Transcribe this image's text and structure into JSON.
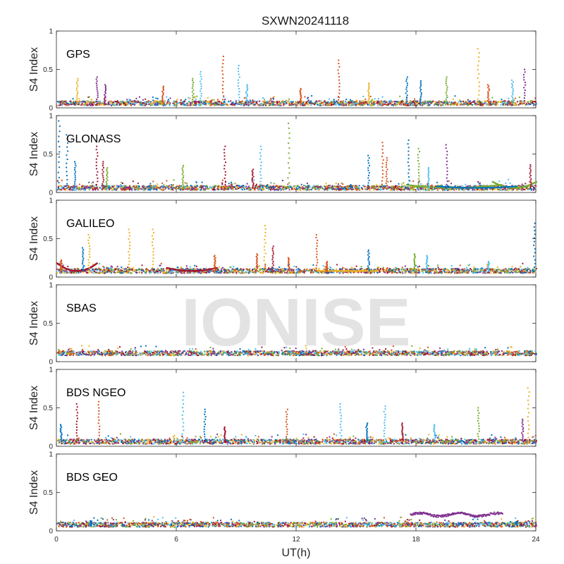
{
  "chart_data": {
    "type": "scatter",
    "title": "SXWN20241118",
    "xlabel": "UT(h)",
    "ylabel": "S4 Index",
    "xlim": [
      0,
      24
    ],
    "ylim": [
      0,
      1
    ],
    "xticks": [
      0,
      6,
      12,
      18,
      24
    ],
    "yticks": [
      0,
      0.5,
      1
    ],
    "xtick_labels": [
      "0",
      "6",
      "12",
      "18",
      "24"
    ],
    "ytick_labels": [
      "0",
      "0.5",
      "1"
    ],
    "watermark": "IONISE",
    "colors": [
      "#0072BD",
      "#D95319",
      "#EDB120",
      "#7E2F8E",
      "#77AC30",
      "#4DBEEE",
      "#A2142F"
    ],
    "panels": [
      {
        "label": "GPS",
        "baseline": 0.06,
        "spikes": [
          [
            1.0,
            0.38,
            2
          ],
          [
            2.0,
            0.4,
            3
          ],
          [
            2.4,
            0.3,
            3
          ],
          [
            5.3,
            0.28,
            1
          ],
          [
            6.8,
            0.38,
            4
          ],
          [
            7.2,
            0.47,
            5
          ],
          [
            8.3,
            0.67,
            1
          ],
          [
            9.1,
            0.55,
            5
          ],
          [
            9.5,
            0.3,
            5
          ],
          [
            12.2,
            0.25,
            1
          ],
          [
            14.1,
            0.62,
            1
          ],
          [
            15.6,
            0.32,
            2
          ],
          [
            17.5,
            0.4,
            0
          ],
          [
            18.2,
            0.35,
            0
          ],
          [
            19.5,
            0.4,
            4
          ],
          [
            21.1,
            0.77,
            2
          ],
          [
            21.6,
            0.3,
            1
          ],
          [
            22.8,
            0.36,
            5
          ],
          [
            23.4,
            0.5,
            3
          ]
        ]
      },
      {
        "label": "GLONASS",
        "baseline": 0.06,
        "spikes": [
          [
            0.1,
            0.93,
            0
          ],
          [
            0.5,
            0.75,
            0
          ],
          [
            0.9,
            0.4,
            0
          ],
          [
            2.0,
            0.6,
            6
          ],
          [
            2.3,
            0.4,
            6
          ],
          [
            2.5,
            0.32,
            4
          ],
          [
            6.3,
            0.35,
            4
          ],
          [
            8.4,
            0.6,
            6
          ],
          [
            9.8,
            0.3,
            6
          ],
          [
            10.2,
            0.6,
            5
          ],
          [
            11.6,
            0.9,
            4
          ],
          [
            15.6,
            0.48,
            0
          ],
          [
            16.3,
            0.65,
            1
          ],
          [
            16.5,
            0.45,
            1
          ],
          [
            17.6,
            0.68,
            0
          ],
          [
            18.1,
            0.57,
            4
          ],
          [
            18.6,
            0.32,
            5
          ],
          [
            19.5,
            0.62,
            3
          ],
          [
            23.7,
            0.36,
            6
          ]
        ],
        "arcs": [
          [
            17.5,
            22.2,
            0.1,
            4
          ],
          [
            21.8,
            24.0,
            0.14,
            4
          ],
          [
            19.0,
            23.0,
            0.08,
            0
          ]
        ]
      },
      {
        "label": "GALILEO",
        "baseline": 0.08,
        "spikes": [
          [
            0.2,
            0.22,
            1
          ],
          [
            1.3,
            0.38,
            0
          ],
          [
            1.6,
            0.55,
            2
          ],
          [
            3.6,
            0.62,
            2
          ],
          [
            4.8,
            0.62,
            2
          ],
          [
            7.9,
            0.28,
            1
          ],
          [
            10.0,
            0.3,
            1
          ],
          [
            10.4,
            0.67,
            2
          ],
          [
            10.8,
            0.4,
            6
          ],
          [
            11.6,
            0.25,
            1
          ],
          [
            13.0,
            0.55,
            1
          ],
          [
            13.5,
            0.2,
            1
          ],
          [
            15.6,
            0.35,
            0
          ],
          [
            17.9,
            0.3,
            4
          ],
          [
            18.5,
            0.28,
            5
          ],
          [
            21.6,
            0.2,
            5
          ],
          [
            23.9,
            0.7,
            0
          ]
        ],
        "arcs": [
          [
            0.0,
            2.0,
            0.18,
            6
          ],
          [
            5.5,
            8.0,
            0.12,
            6
          ],
          [
            13.0,
            16.0,
            0.08,
            2
          ]
        ]
      },
      {
        "label": "SBAS",
        "baseline": 0.11,
        "spikes": []
      },
      {
        "label": "BDS NGEO",
        "baseline": 0.06,
        "spikes": [
          [
            0.2,
            0.28,
            0
          ],
          [
            1.0,
            0.55,
            6
          ],
          [
            2.1,
            0.58,
            1
          ],
          [
            6.3,
            0.7,
            5
          ],
          [
            7.4,
            0.48,
            0
          ],
          [
            8.4,
            0.25,
            6
          ],
          [
            11.5,
            0.48,
            1
          ],
          [
            14.2,
            0.55,
            5
          ],
          [
            15.5,
            0.3,
            0
          ],
          [
            16.4,
            0.52,
            5
          ],
          [
            17.3,
            0.3,
            6
          ],
          [
            18.9,
            0.28,
            5
          ],
          [
            21.1,
            0.5,
            4
          ],
          [
            23.3,
            0.35,
            3
          ],
          [
            23.6,
            0.76,
            2
          ]
        ]
      },
      {
        "label": "BDS GEO",
        "baseline": 0.08,
        "spikes": [
          [
            1.7,
            0.13,
            0
          ],
          [
            23.0,
            0.12,
            0
          ]
        ],
        "segments": [
          [
            17.7,
            22.3,
            0.21,
            3
          ]
        ]
      }
    ]
  }
}
